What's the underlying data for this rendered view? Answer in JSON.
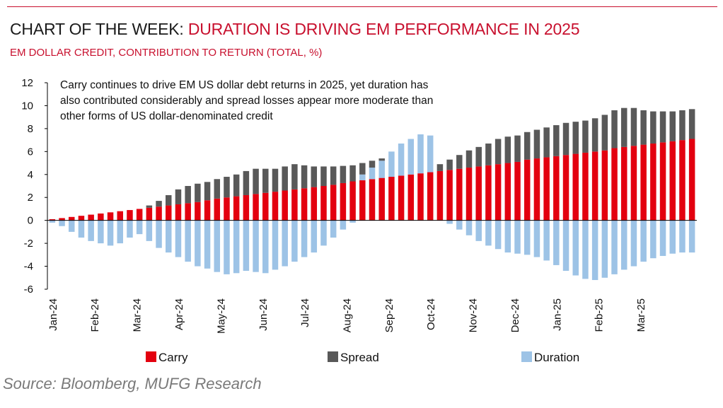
{
  "header": {
    "title_prefix": "CHART OF THE WEEK:",
    "title_highlight": "DURATION IS DRIVING EM PERFORMANCE IN 2025",
    "subtitle": "EM DOLLAR CREDIT, CONTRIBUTION TO RETURN (TOTAL, %)"
  },
  "annotation": "Carry continues to drive EM US dollar debt returns in 2025, yet duration has also contributed considerably and spread losses appear more moderate than other forms of US dollar-denominated credit",
  "source": "Source: Bloomberg, MUFG Research",
  "colors": {
    "accent": "#c8102e",
    "carry": "#e3000f",
    "spread": "#595959",
    "duration": "#9dc3e6",
    "axis": "#000000"
  },
  "chart_data": {
    "type": "bar",
    "stacked": true,
    "ylim": [
      -6,
      12
    ],
    "yticks": [
      -6,
      -4,
      -2,
      0,
      2,
      4,
      6,
      8,
      10,
      12
    ],
    "xlabel": "",
    "ylabel": "",
    "x_tick_labels": [
      "Jan-24",
      "Feb-24",
      "Mar-24",
      "Apr-24",
      "May-24",
      "Jun-24",
      "Jul-24",
      "Aug-24",
      "Sep-24",
      "Oct-24",
      "Nov-24",
      "Dec-24",
      "Jan-25",
      "Feb-25",
      "Mar-25"
    ],
    "x_tick_positions": [
      0,
      4.33,
      8.67,
      13,
      17.33,
      21.67,
      26,
      30.33,
      34.67,
      39,
      43.33,
      47.67,
      52,
      56.33,
      60.67
    ],
    "x_range": [
      -0.5,
      66.5
    ],
    "legend": {
      "placement": "bottom",
      "entries": [
        "Carry",
        "Spread",
        "Duration"
      ]
    },
    "series": [
      {
        "name": "Carry",
        "values": [
          0.1,
          0.2,
          0.3,
          0.4,
          0.5,
          0.6,
          0.7,
          0.8,
          0.9,
          1.0,
          1.1,
          1.2,
          1.3,
          1.4,
          1.5,
          1.6,
          1.75,
          1.9,
          2.0,
          2.1,
          2.2,
          2.3,
          2.4,
          2.5,
          2.6,
          2.7,
          2.8,
          2.9,
          3.0,
          3.1,
          3.25,
          3.4,
          3.5,
          3.6,
          3.7,
          3.8,
          3.9,
          4.0,
          4.1,
          4.2,
          4.3,
          4.4,
          4.5,
          4.6,
          4.7,
          4.8,
          4.9,
          5.0,
          5.1,
          5.3,
          5.4,
          5.5,
          5.6,
          5.7,
          5.8,
          5.9,
          6.0,
          6.1,
          6.3,
          6.4,
          6.5,
          6.6,
          6.7,
          6.8,
          6.9,
          7.0,
          7.1
        ]
      },
      {
        "name": "Spread",
        "values": [
          0,
          0,
          0,
          0,
          0,
          0,
          0,
          0,
          0,
          0,
          0.2,
          0.5,
          0.9,
          1.3,
          1.5,
          1.6,
          1.6,
          1.7,
          1.8,
          1.9,
          2.1,
          2.2,
          2.1,
          2.0,
          2.1,
          2.2,
          2.0,
          1.8,
          1.7,
          1.6,
          1.5,
          1.4,
          1.0,
          0.6,
          0.2,
          0,
          0,
          0,
          0,
          0,
          0.6,
          0.9,
          1.2,
          1.5,
          1.7,
          1.9,
          2.2,
          2.3,
          2.3,
          2.4,
          2.5,
          2.6,
          2.7,
          2.8,
          2.8,
          2.8,
          2.9,
          3.1,
          3.3,
          3.4,
          3.3,
          3.0,
          2.8,
          2.7,
          2.6,
          2.6,
          2.6
        ]
      },
      {
        "name": "Duration",
        "values": [
          -0.2,
          -0.5,
          -1.0,
          -1.5,
          -1.8,
          -2.0,
          -2.2,
          -2.0,
          -1.5,
          -1.2,
          -1.8,
          -2.4,
          -2.8,
          -3.2,
          -3.6,
          -4.0,
          -4.2,
          -4.5,
          -4.7,
          -4.6,
          -4.4,
          -4.5,
          -4.6,
          -4.3,
          -4.0,
          -3.6,
          -3.2,
          -2.8,
          -2.2,
          -1.5,
          -0.8,
          -0.2,
          0.5,
          1.0,
          1.5,
          2.2,
          2.8,
          3.1,
          3.4,
          3.2,
          0,
          -0.3,
          -0.8,
          -1.3,
          -1.8,
          -2.2,
          -2.5,
          -2.8,
          -2.9,
          -3.0,
          -3.2,
          -3.5,
          -3.9,
          -4.4,
          -4.8,
          -5.1,
          -5.2,
          -5.0,
          -4.7,
          -4.3,
          -4.0,
          -3.6,
          -3.3,
          -3.1,
          -2.9,
          -2.8,
          -2.8
        ]
      }
    ]
  }
}
